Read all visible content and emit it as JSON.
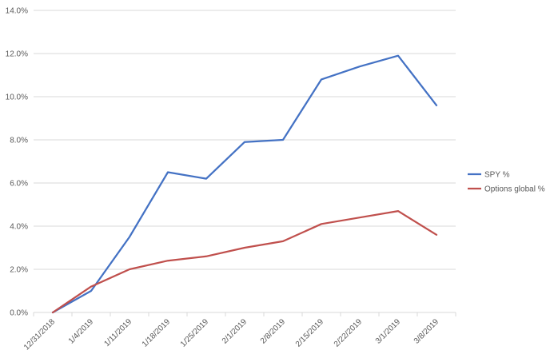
{
  "chart_data": {
    "type": "line",
    "title": "",
    "xlabel": "",
    "ylabel": "",
    "categories": [
      "12/31/2018",
      "1/4/2019",
      "1/11/2019",
      "1/18/2019",
      "1/25/2019",
      "2/1/2019",
      "2/8/2019",
      "2/15/2019",
      "2/22/2019",
      "3/1/2019",
      "3/8/2019"
    ],
    "y_tick_labels": [
      "0.0%",
      "2.0%",
      "4.0%",
      "6.0%",
      "8.0%",
      "10.0%",
      "12.0%",
      "14.0%"
    ],
    "ylim": [
      0,
      14
    ],
    "y_step": 2,
    "y_unit": "%",
    "grid": "horizontal",
    "legend_position": "right",
    "series": [
      {
        "name": "SPY %",
        "color": "#4472C4",
        "values": [
          0.0,
          1.0,
          3.5,
          6.5,
          6.2,
          7.9,
          8.0,
          10.8,
          11.4,
          11.9,
          9.6
        ]
      },
      {
        "name": "Options global %",
        "color": "#C0504D",
        "values": [
          0.0,
          1.2,
          2.0,
          2.4,
          2.6,
          3.0,
          3.3,
          4.1,
          4.4,
          4.7,
          3.6
        ]
      }
    ]
  }
}
